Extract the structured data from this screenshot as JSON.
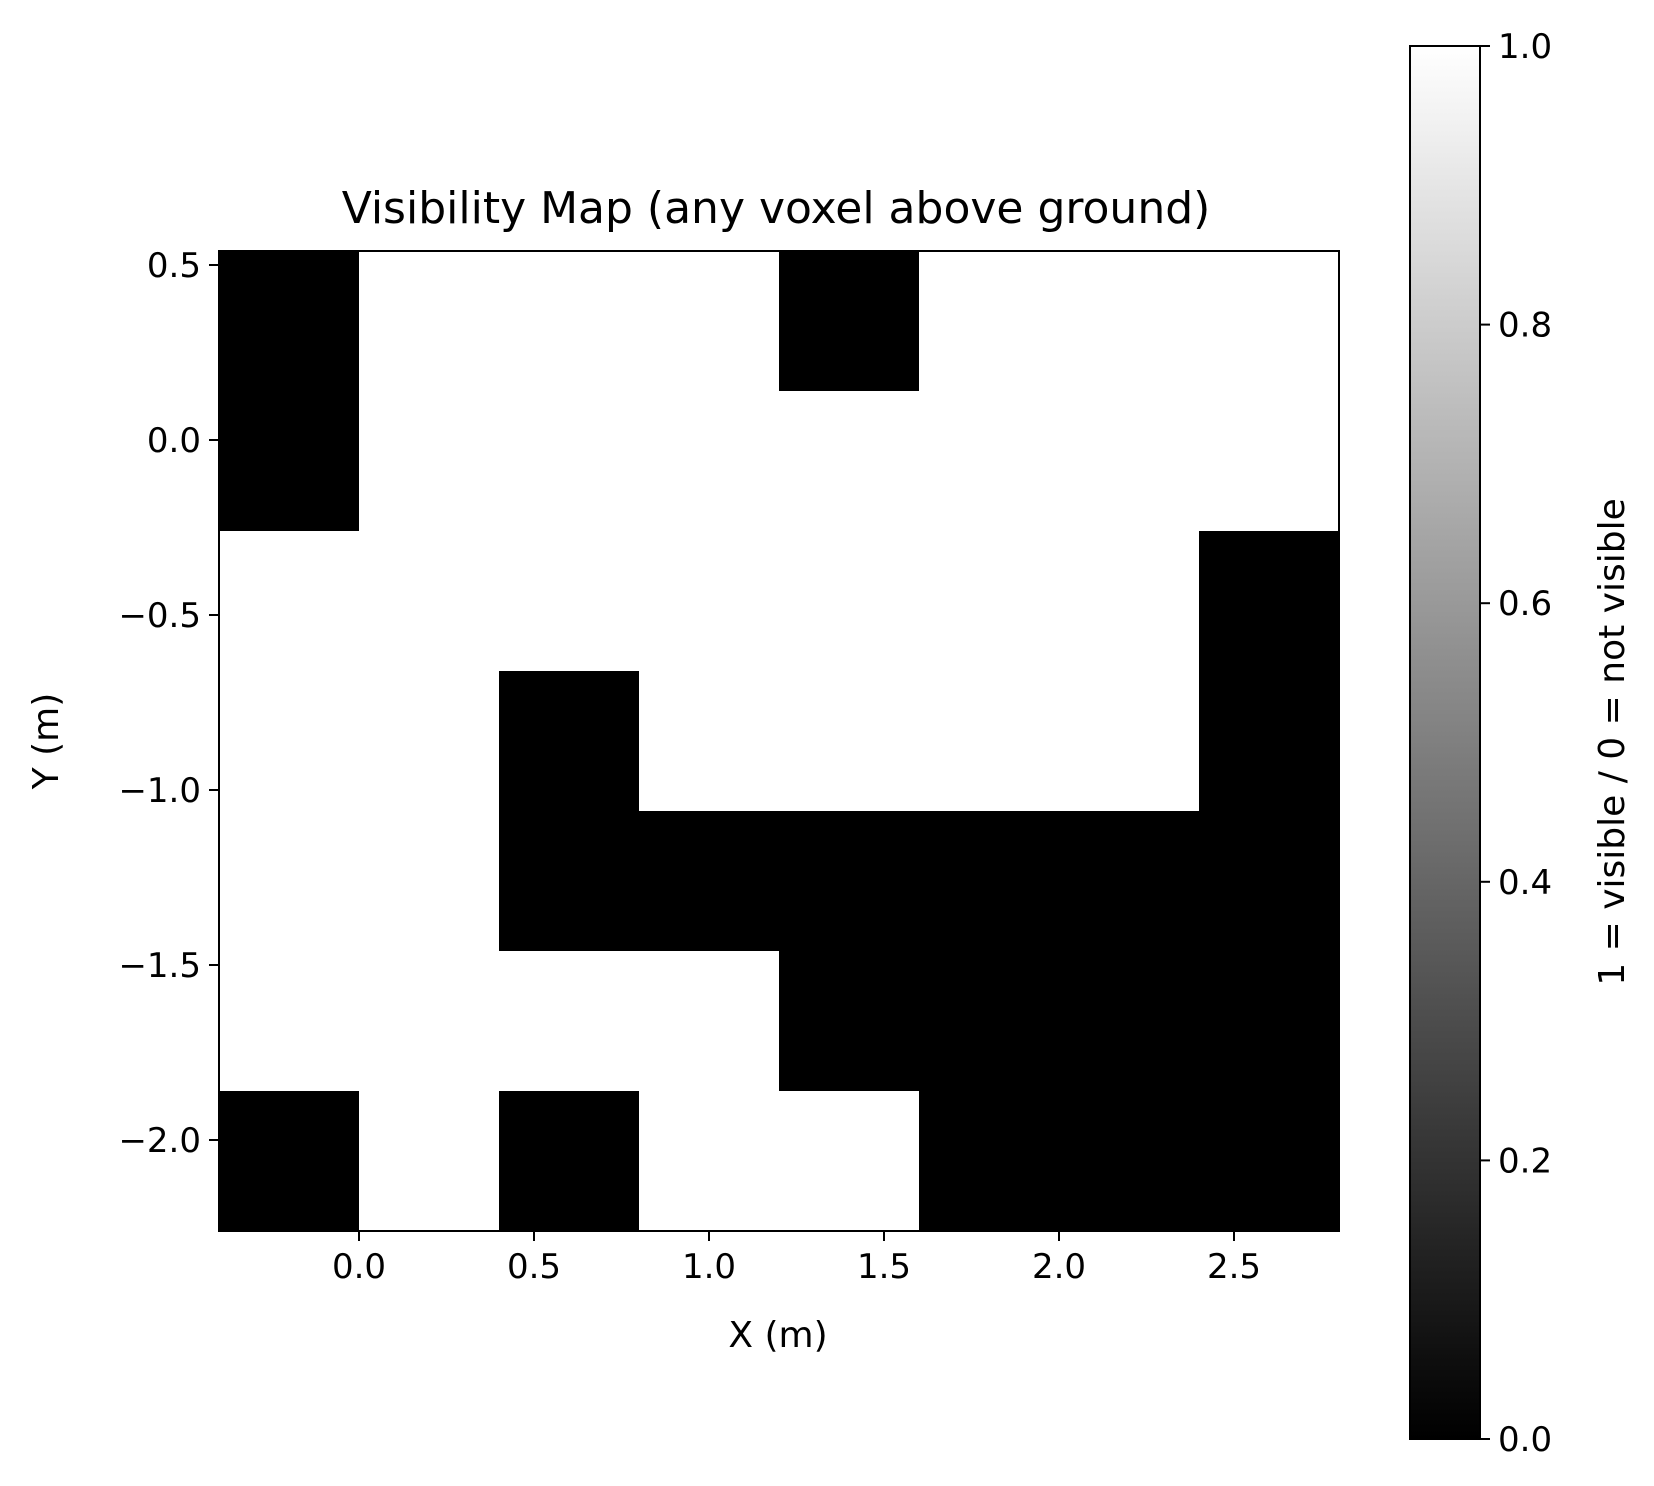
{
  "chart_data": {
    "type": "heatmap",
    "title": "Visibility Map (any voxel above ground)",
    "xlabel": "X (m)",
    "ylabel": "Y (m)",
    "x_ticks": [
      "0.0",
      "0.5",
      "1.0",
      "1.5",
      "2.0",
      "2.5"
    ],
    "x_tick_values": [
      0.0,
      0.5,
      1.0,
      1.5,
      2.0,
      2.5
    ],
    "y_ticks": [
      "0.5",
      "0.0",
      "−0.5",
      "−1.0",
      "−1.5",
      "−2.0"
    ],
    "y_tick_values": [
      0.5,
      0.0,
      -0.5,
      -1.0,
      -1.5,
      -2.0
    ],
    "xlim": [
      -0.4,
      2.8
    ],
    "ylim": [
      -2.26,
      0.54
    ],
    "x_cells": [
      -0.2,
      0.2,
      0.6,
      1.0,
      1.4,
      1.8,
      2.2,
      2.6
    ],
    "y_cells": [
      0.34,
      -0.06,
      -0.46,
      -0.86,
      -1.26,
      -1.66,
      -2.06
    ],
    "grid_values": [
      [
        0,
        1,
        1,
        1,
        0,
        1,
        1,
        1
      ],
      [
        0,
        1,
        1,
        1,
        1,
        1,
        1,
        1
      ],
      [
        1,
        1,
        1,
        1,
        1,
        1,
        1,
        0
      ],
      [
        1,
        1,
        0,
        1,
        1,
        1,
        1,
        0
      ],
      [
        1,
        1,
        0,
        0,
        0,
        0,
        0,
        0
      ],
      [
        1,
        1,
        1,
        1,
        0,
        0,
        0,
        0
      ],
      [
        0,
        1,
        0,
        1,
        1,
        0,
        0,
        0
      ]
    ],
    "colormap": "gray",
    "colorbar": {
      "label": "1 = visible / 0 = not visible",
      "range": [
        0.0,
        1.0
      ],
      "ticks": [
        "0.0",
        "0.2",
        "0.4",
        "0.6",
        "0.8",
        "1.0"
      ],
      "tick_values": [
        0.0,
        0.2,
        0.4,
        0.6,
        0.8,
        1.0
      ]
    },
    "grid": false
  }
}
